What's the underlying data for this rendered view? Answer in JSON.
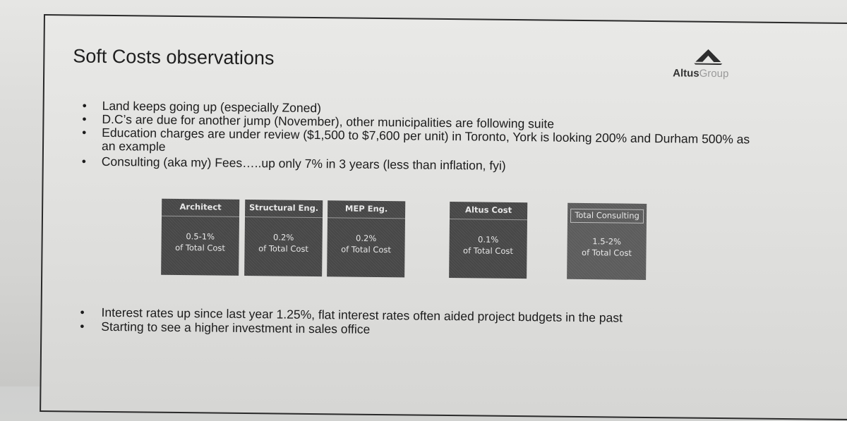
{
  "slide": {
    "title": "Soft Costs observations",
    "logo": {
      "brand_primary": "Altus",
      "brand_secondary": "Group",
      "icon": "altus-logo-icon"
    },
    "bullets_top": [
      "Land keeps going up (especially Zoned)",
      "D.C’s are due for another jump (November), other municipalities are following suite",
      "Education charges are under review ($1,500 to $7,600 per unit) in Toronto, York is looking 200% and Durham 500% as an example",
      "Consulting (aka my) Fees…..up only 7% in 3 years (less than inflation, fyi)"
    ],
    "cost_boxes": [
      {
        "label": "Architect",
        "value_line1": "0.5-1%",
        "value_line2": "of Total Cost"
      },
      {
        "label": "Structural Eng.",
        "value_line1": "0.2%",
        "value_line2": "of Total Cost"
      },
      {
        "label": "MEP Eng.",
        "value_line1": "0.2%",
        "value_line2": "of Total Cost"
      },
      {
        "label": "Altus Cost",
        "value_line1": "0.1%",
        "value_line2": "of Total Cost"
      },
      {
        "label": "Total Consulting",
        "value_line1": "1.5-2%",
        "value_line2": "of Total Cost"
      }
    ],
    "bullets_bottom": [
      "Interest rates up since last year 1.25%, flat interest rates often aided project budgets in the past",
      "Starting to see a higher investment in sales office"
    ],
    "colors": {
      "box_dark": "#474747",
      "box_total": "#5c5c5c",
      "text": "#1c1c1c"
    }
  }
}
